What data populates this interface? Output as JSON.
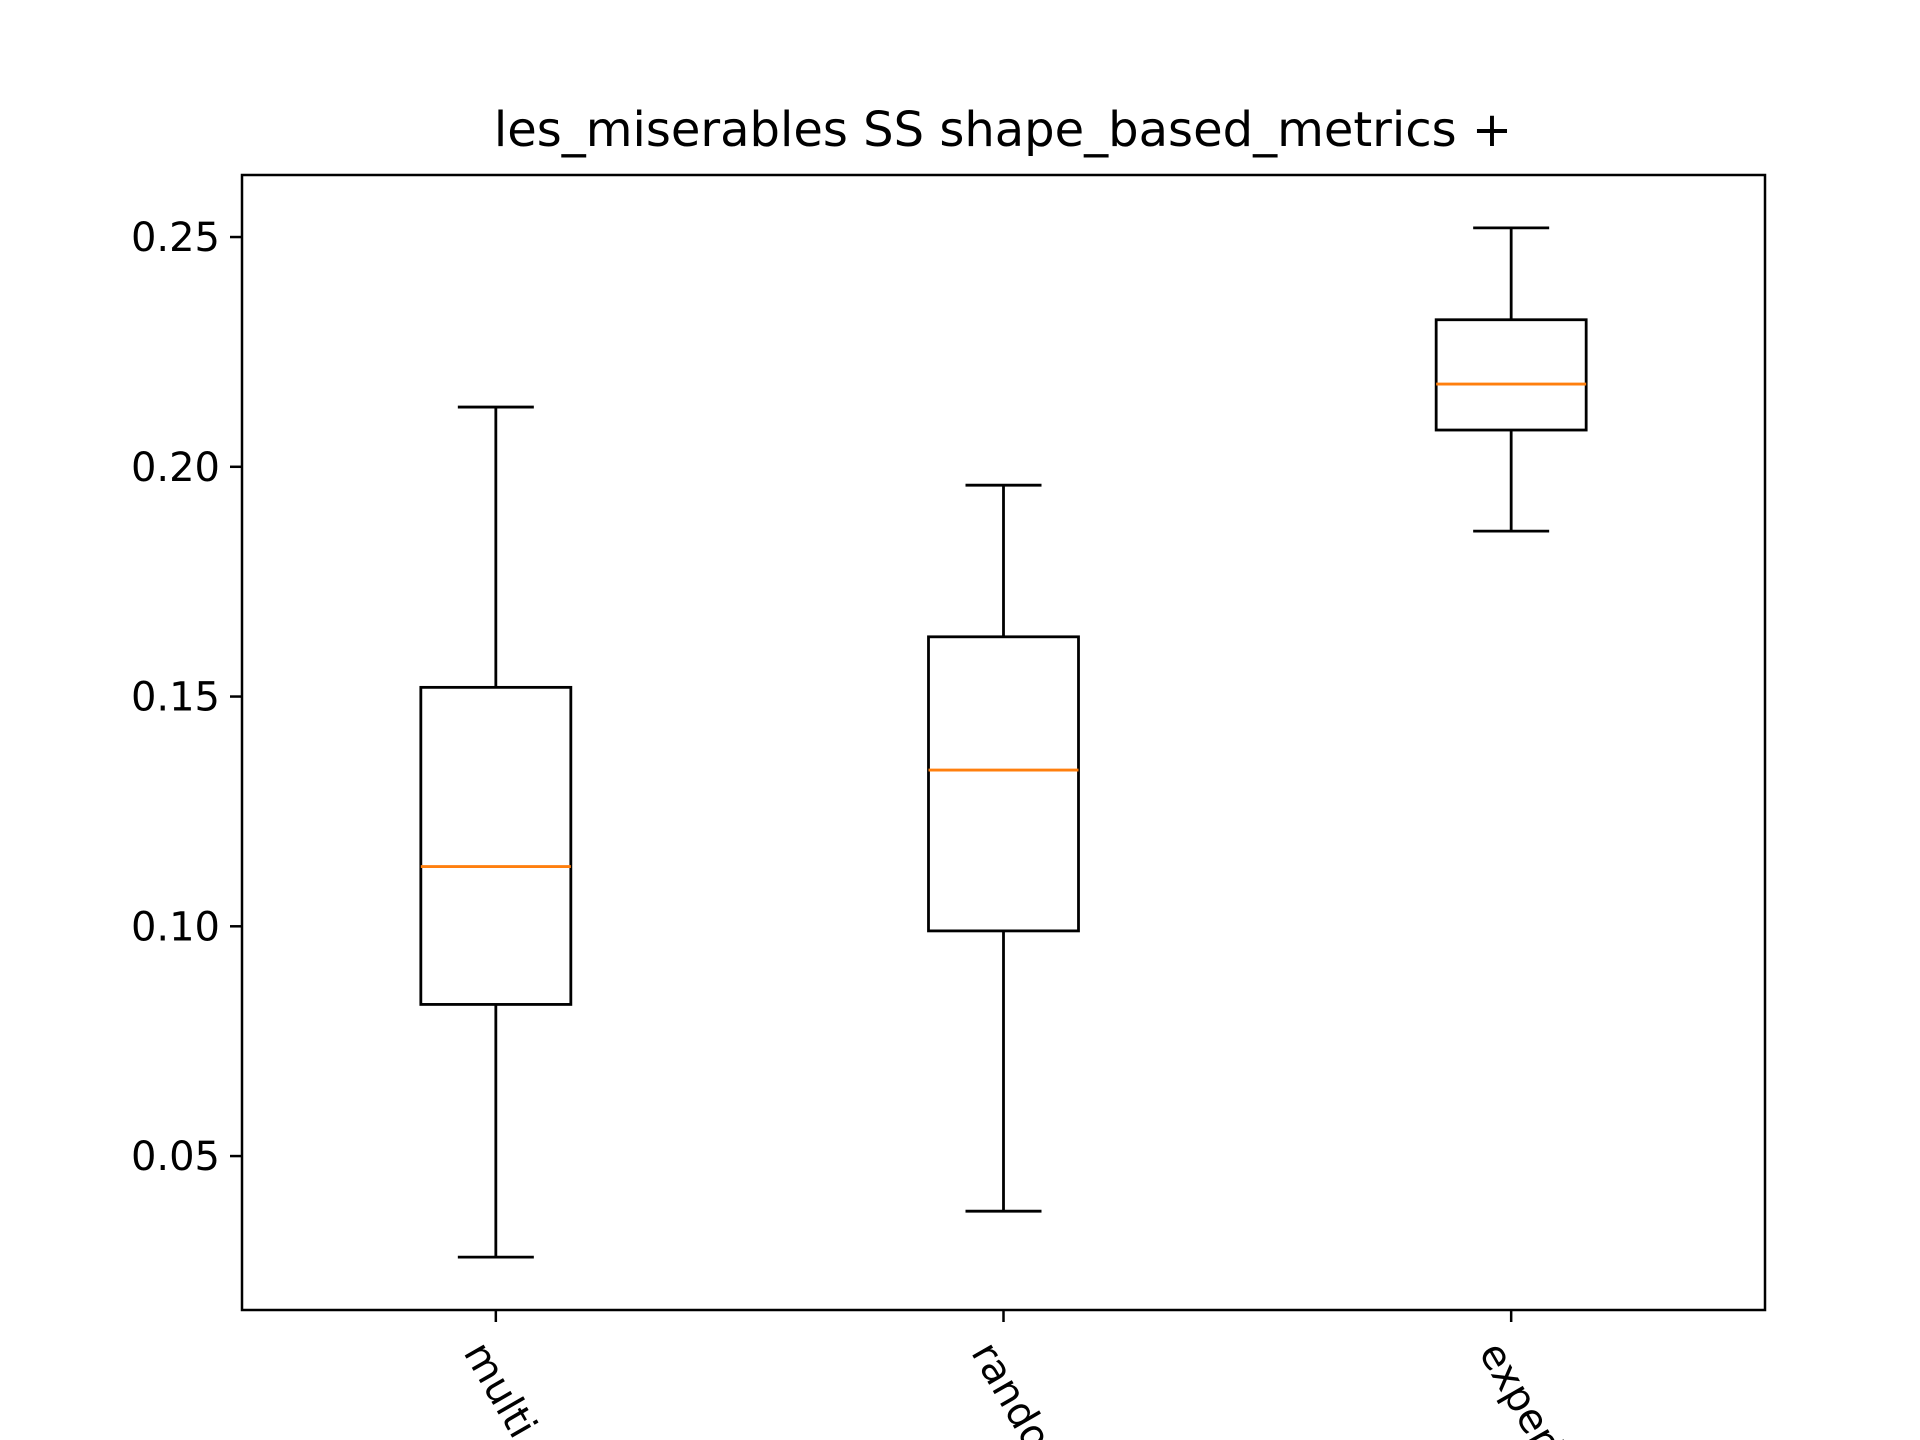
{
  "chart_data": {
    "type": "box",
    "title": "les_miserables SS shape_based_metrics +",
    "xlabel": "",
    "ylabel": "",
    "categories": [
      "multi_o",
      "random",
      "experie"
    ],
    "boxes": [
      {
        "whisker_low": 0.028,
        "q1": 0.083,
        "median": 0.113,
        "q3": 0.152,
        "whisker_high": 0.213
      },
      {
        "whisker_low": 0.038,
        "q1": 0.099,
        "median": 0.134,
        "q3": 0.163,
        "whisker_high": 0.196
      },
      {
        "whisker_low": 0.186,
        "q1": 0.208,
        "median": 0.218,
        "q3": 0.232,
        "whisker_high": 0.252
      }
    ],
    "ylim": [
      0.0165,
      0.2635
    ],
    "yticks": [
      0.05,
      0.1,
      0.15,
      0.2,
      0.25
    ],
    "ytick_labels": [
      "0.05",
      "0.10",
      "0.15",
      "0.20",
      "0.25"
    ],
    "grid": false,
    "legend": "none",
    "colors": {
      "box": "#000000",
      "median": "#ff7f0e",
      "axes": "#000000"
    }
  }
}
